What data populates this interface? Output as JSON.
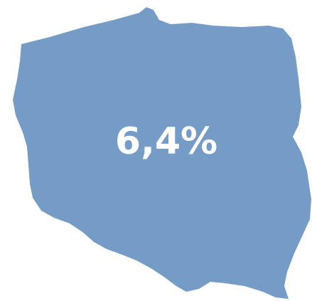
{
  "label": "6,4%"
}
